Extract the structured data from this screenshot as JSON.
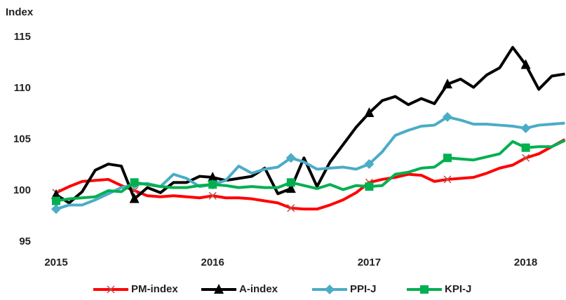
{
  "chart_data": {
    "type": "line",
    "y_axis_label": "Index",
    "categories": [
      "2015",
      null,
      null,
      null,
      null,
      null,
      null,
      null,
      null,
      null,
      null,
      null,
      "2016",
      null,
      null,
      null,
      null,
      null,
      null,
      null,
      null,
      null,
      null,
      null,
      "2017",
      null,
      null,
      null,
      null,
      null,
      null,
      null,
      null,
      null,
      null,
      null,
      "2018",
      null,
      null,
      null
    ],
    "series": [
      {
        "name": "PM-index",
        "color": "#ff0000",
        "marker": "x",
        "values": [
          99.8,
          100.4,
          100.9,
          101.0,
          101.1,
          100.5,
          100.0,
          99.5,
          99.4,
          99.5,
          99.4,
          99.3,
          99.5,
          99.3,
          99.3,
          99.2,
          99.0,
          98.8,
          98.3,
          98.2,
          98.2,
          98.6,
          99.1,
          99.8,
          100.8,
          101.1,
          101.3,
          101.6,
          101.5,
          100.9,
          101.1,
          101.2,
          101.3,
          101.7,
          102.2,
          102.5,
          103.2,
          103.6,
          104.3,
          105.0
        ]
      },
      {
        "name": "A-index",
        "color": "#000000",
        "marker": "triangle",
        "values": [
          99.6,
          98.8,
          99.9,
          102.0,
          102.6,
          102.4,
          99.2,
          100.3,
          99.8,
          100.8,
          100.8,
          101.4,
          101.3,
          101.0,
          101.2,
          101.4,
          102.2,
          99.7,
          100.2,
          103.2,
          100.4,
          102.8,
          104.5,
          106.2,
          107.6,
          108.8,
          109.2,
          108.4,
          109.0,
          108.5,
          110.4,
          110.9,
          110.1,
          111.3,
          112.0,
          114.0,
          112.3,
          109.9,
          111.2,
          111.4
        ]
      },
      {
        "name": "PPI-J",
        "color": "#4bacc6",
        "marker": "diamond",
        "values": [
          98.2,
          98.6,
          98.6,
          99.1,
          99.7,
          100.3,
          100.6,
          100.7,
          100.4,
          101.6,
          101.2,
          100.4,
          100.6,
          101.0,
          102.4,
          101.7,
          102.1,
          102.3,
          103.2,
          102.8,
          102.1,
          102.2,
          102.3,
          102.1,
          102.6,
          103.8,
          105.4,
          105.9,
          106.3,
          106.4,
          107.2,
          106.9,
          106.5,
          106.5,
          106.4,
          106.3,
          106.1,
          106.4,
          106.5,
          106.6
        ]
      },
      {
        "name": "KPI-J",
        "color": "#00b050",
        "marker": "square",
        "values": [
          99.0,
          99.2,
          99.3,
          99.4,
          100.0,
          99.9,
          100.8,
          100.6,
          100.4,
          100.3,
          100.3,
          100.5,
          100.6,
          100.5,
          100.3,
          100.4,
          100.3,
          100.3,
          100.8,
          100.5,
          100.2,
          100.6,
          100.1,
          100.5,
          100.4,
          100.5,
          101.6,
          101.8,
          102.2,
          102.3,
          103.2,
          103.1,
          103.0,
          103.3,
          103.6,
          104.8,
          104.2,
          104.3,
          104.3,
          104.9
        ]
      }
    ],
    "ylim": [
      95,
      115
    ],
    "yticks": [
      95,
      100,
      105,
      110,
      115
    ],
    "grid": false,
    "legend": "bottom"
  }
}
